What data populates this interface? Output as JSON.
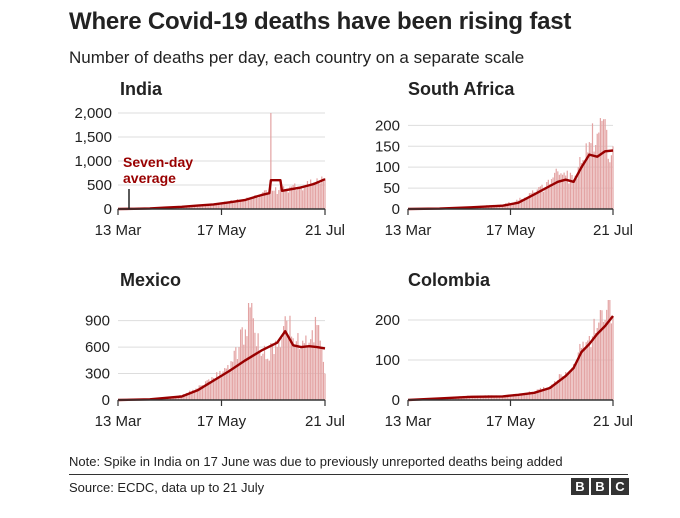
{
  "title": "Where Covid-19 deaths have been rising fast",
  "subtitle": "Number of deaths per day, each country on a separate scale",
  "note": "Note: Spike in India on 17 June was due to previously unreported deaths being added",
  "source": "Source: ECDC, data up to 21 July",
  "logo": [
    "B",
    "B",
    "C"
  ],
  "colors": {
    "bar": "#e3a3a3",
    "line": "#990000",
    "annotation": "#990000",
    "axis": "#333333",
    "grid": "#dddddd"
  },
  "chart_data": [
    {
      "type": "bar",
      "title": "India",
      "x_ticks": [
        "13 Mar",
        "17 May",
        "21 Jul"
      ],
      "x_range": [
        "13 Mar",
        "21 Jul"
      ],
      "ylim": [
        0,
        2000
      ],
      "y_ticks": [
        0,
        500,
        1000,
        1500,
        2000
      ],
      "y_tick_labels": [
        "0",
        "500",
        "1,000",
        "1,500",
        "2,000"
      ],
      "grid": true,
      "annotation": "Seven-day average",
      "series": [
        {
          "name": "Deaths per day",
          "style": "bars",
          "x": [
            "13 Mar",
            "23 Mar",
            "2 Apr",
            "12 Apr",
            "22 Apr",
            "2 May",
            "12 May",
            "22 May",
            "1 Jun",
            "11 Jun",
            "16 Jun",
            "17 Jun",
            "18 Jun",
            "26 Jun",
            "6 Jul",
            "14 Jul",
            "21 Jul"
          ],
          "values": [
            1,
            5,
            15,
            35,
            50,
            75,
            100,
            150,
            200,
            300,
            350,
            2000,
            380,
            410,
            480,
            560,
            640
          ]
        },
        {
          "name": "Seven-day average",
          "style": "line",
          "x": [
            "13 Mar",
            "23 Mar",
            "2 Apr",
            "12 Apr",
            "22 Apr",
            "2 May",
            "12 May",
            "22 May",
            "1 Jun",
            "11 Jun",
            "16 Jun",
            "17 Jun",
            "23 Jun",
            "24 Jun",
            "6 Jul",
            "14 Jul",
            "21 Jul"
          ],
          "values": [
            1,
            4,
            12,
            30,
            45,
            70,
            95,
            140,
            190,
            290,
            330,
            600,
            600,
            380,
            450,
            520,
            620
          ]
        }
      ]
    },
    {
      "type": "bar",
      "title": "South Africa",
      "x_ticks": [
        "13 Mar",
        "17 May",
        "21 Jul"
      ],
      "x_range": [
        "13 Mar",
        "21 Jul"
      ],
      "ylim": [
        0,
        220
      ],
      "y_ticks": [
        0,
        50,
        100,
        150,
        200
      ],
      "y_tick_labels": [
        "0",
        "50",
        "100",
        "150",
        "200"
      ],
      "grid": true,
      "series": [
        {
          "name": "Deaths per day",
          "style": "bars",
          "x": [
            "13 Mar",
            "2 Apr",
            "22 Apr",
            "12 May",
            "22 May",
            "1 Jun",
            "11 Jun",
            "16 Jun",
            "21 Jun",
            "26 Jun",
            "1 Jul",
            "6 Jul",
            "11 Jul",
            "16 Jul",
            "18 Jul",
            "21 Jul"
          ],
          "values": [
            0,
            1,
            5,
            10,
            20,
            40,
            60,
            90,
            80,
            70,
            110,
            160,
            180,
            215,
            120,
            150
          ]
        },
        {
          "name": "Seven-day average",
          "style": "line",
          "x": [
            "13 Mar",
            "2 Apr",
            "22 Apr",
            "12 May",
            "22 May",
            "1 Jun",
            "11 Jun",
            "16 Jun",
            "21 Jun",
            "26 Jun",
            "1 Jul",
            "6 Jul",
            "11 Jul",
            "16 Jul",
            "21 Jul"
          ],
          "values": [
            0,
            1,
            4,
            8,
            15,
            35,
            55,
            65,
            70,
            65,
            100,
            130,
            125,
            138,
            140
          ]
        }
      ]
    },
    {
      "type": "bar",
      "title": "Mexico",
      "x_ticks": [
        "13 Mar",
        "17 May",
        "21 Jul"
      ],
      "x_range": [
        "13 Mar",
        "21 Jul"
      ],
      "ylim": [
        0,
        1100
      ],
      "y_ticks": [
        0,
        300,
        600,
        900
      ],
      "y_tick_labels": [
        "0",
        "300",
        "600",
        "900"
      ],
      "grid": true,
      "series": [
        {
          "name": "Deaths per day",
          "style": "bars",
          "x": [
            "13 Mar",
            "2 Apr",
            "22 Apr",
            "2 May",
            "12 May",
            "22 May",
            "1 Jun",
            "4 Jun",
            "11 Jun",
            "21 Jun",
            "26 Jun",
            "1 Jul",
            "6 Jul",
            "11 Jul",
            "16 Jul",
            "21 Jul"
          ],
          "values": [
            0,
            10,
            50,
            130,
            250,
            350,
            800,
            1050,
            500,
            600,
            950,
            700,
            600,
            650,
            850,
            300
          ]
        },
        {
          "name": "Seven-day average",
          "style": "line",
          "x": [
            "13 Mar",
            "2 Apr",
            "22 Apr",
            "2 May",
            "12 May",
            "22 May",
            "1 Jun",
            "11 Jun",
            "21 Jun",
            "26 Jun",
            "1 Jul",
            "6 Jul",
            "11 Jul",
            "16 Jul",
            "21 Jul"
          ],
          "values": [
            0,
            8,
            40,
            110,
            220,
            330,
            450,
            560,
            650,
            780,
            620,
            600,
            610,
            600,
            585
          ]
        }
      ]
    },
    {
      "type": "bar",
      "title": "Colombia",
      "x_ticks": [
        "13 Mar",
        "17 May",
        "21 Jul"
      ],
      "x_range": [
        "13 Mar",
        "21 Jul"
      ],
      "ylim": [
        0,
        250
      ],
      "y_ticks": [
        0,
        100,
        200
      ],
      "y_tick_labels": [
        "0",
        "100",
        "200"
      ],
      "grid": true,
      "series": [
        {
          "name": "Deaths per day",
          "style": "bars",
          "x": [
            "13 Mar",
            "2 Apr",
            "22 Apr",
            "12 May",
            "22 May",
            "1 Jun",
            "11 Jun",
            "16 Jun",
            "21 Jun",
            "26 Jun",
            "1 Jul",
            "6 Jul",
            "11 Jul",
            "16 Jul",
            "19 Jul",
            "21 Jul"
          ],
          "values": [
            0,
            5,
            10,
            10,
            15,
            20,
            35,
            50,
            70,
            90,
            130,
            160,
            180,
            200,
            255,
            210
          ]
        },
        {
          "name": "Seven-day average",
          "style": "line",
          "x": [
            "13 Mar",
            "2 Apr",
            "22 Apr",
            "12 May",
            "22 May",
            "1 Jun",
            "11 Jun",
            "16 Jun",
            "21 Jun",
            "26 Jun",
            "1 Jul",
            "6 Jul",
            "11 Jul",
            "16 Jul",
            "21 Jul"
          ],
          "values": [
            0,
            4,
            8,
            9,
            13,
            18,
            30,
            45,
            60,
            80,
            120,
            140,
            165,
            185,
            210
          ]
        }
      ]
    }
  ]
}
